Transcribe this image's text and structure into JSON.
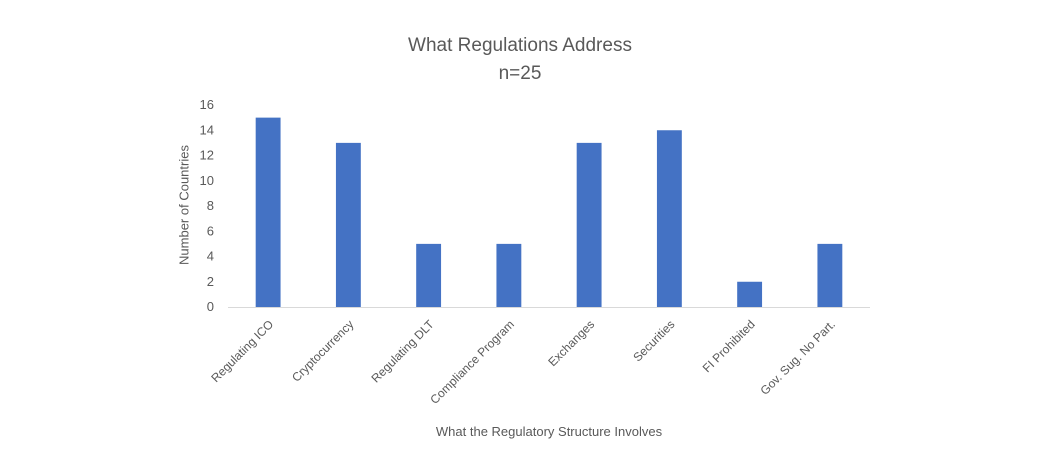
{
  "chart_data": {
    "type": "bar",
    "title": "What Regulations Address",
    "subtitle": "n=25",
    "xlabel": "What the Regulatory Structure Involves",
    "ylabel": "Number of Countries",
    "categories": [
      "Regulating ICO",
      "Cryptocurrency",
      "Regulating DLT",
      "Compliance Program",
      "Exchanges",
      "Securities",
      "FI Prohibited",
      "Gov. Sug. No Part."
    ],
    "values": [
      15,
      13,
      5,
      5,
      13,
      14,
      2,
      5
    ],
    "ylim": [
      0,
      16
    ],
    "yticks": [
      0,
      2,
      4,
      6,
      8,
      10,
      12,
      14,
      16
    ],
    "grid": false,
    "legend": "none",
    "bar_color": "#4472C4",
    "axis_color": "#D9D9D9",
    "text_color": "#595959"
  }
}
